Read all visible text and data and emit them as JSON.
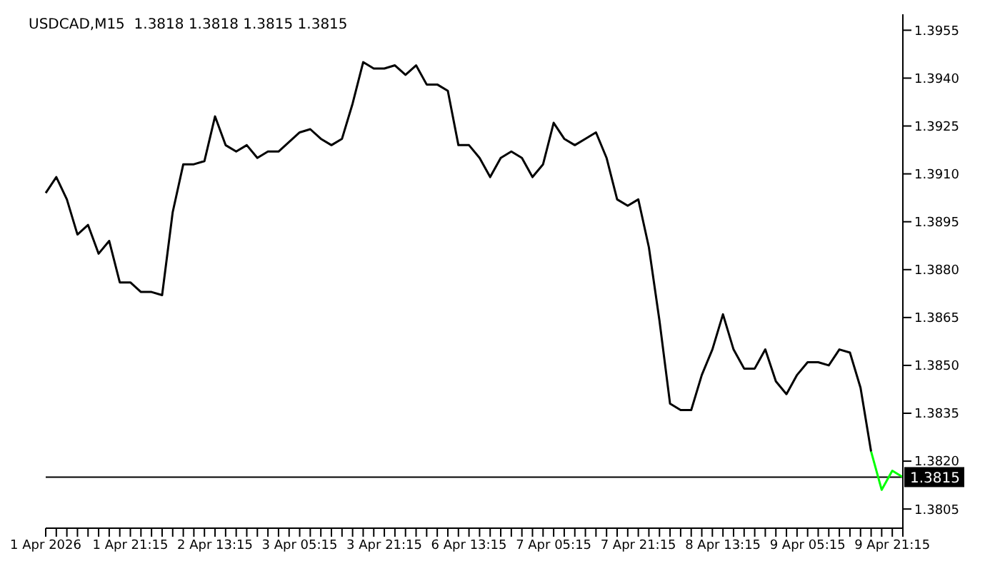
{
  "chart_data": {
    "type": "line",
    "title": "USDCAD,M15  1.3818 1.3818 1.3815 1.3815",
    "categories": [
      "1 Apr 2026",
      null,
      null,
      null,
      null,
      null,
      null,
      null,
      "1 Apr 21:15",
      null,
      null,
      null,
      null,
      null,
      null,
      null,
      "2 Apr 13:15",
      null,
      null,
      null,
      null,
      null,
      null,
      null,
      "3 Apr 05:15",
      null,
      null,
      null,
      null,
      null,
      null,
      null,
      "3 Apr 21:15",
      null,
      null,
      null,
      null,
      null,
      null,
      null,
      "6 Apr 13:15",
      null,
      null,
      null,
      null,
      null,
      null,
      null,
      "7 Apr 05:15",
      null,
      null,
      null,
      null,
      null,
      null,
      null,
      "7 Apr 21:15",
      null,
      null,
      null,
      null,
      null,
      null,
      null,
      "8 Apr 13:15",
      null,
      null,
      null,
      null,
      null,
      null,
      null,
      "9 Apr 05:15",
      null,
      null,
      null,
      null,
      null,
      null,
      null,
      "9 Apr 21:15",
      null
    ],
    "series": [
      {
        "color": "#000000",
        "values": [
          1.3904,
          1.3909,
          1.3902,
          1.3891,
          1.3894,
          1.3885,
          1.3889,
          1.3876,
          1.3876,
          1.3873,
          1.3873,
          1.3872,
          1.3898,
          1.3913,
          1.3913,
          1.3914,
          1.3928,
          1.3919,
          1.3917,
          1.3919,
          1.3915,
          1.3917,
          1.3917,
          1.392,
          1.3923,
          1.3924,
          1.3921,
          1.3919,
          1.3921,
          1.3932,
          1.3945,
          1.3943,
          1.3943,
          1.3944,
          1.3941,
          1.3944,
          1.3938,
          1.3938,
          1.3936,
          1.3919,
          1.3919,
          1.3915,
          1.3909,
          1.3915,
          1.3917,
          1.3915,
          1.3909,
          1.3913,
          1.3926,
          1.3921,
          1.3919,
          1.3921,
          1.3923,
          1.3915,
          1.3902,
          1.39,
          1.3902,
          1.3887,
          1.3864,
          1.3838,
          1.3836,
          1.3836,
          1.3847,
          1.3855,
          1.3866,
          1.3855,
          1.3849,
          1.3849,
          1.3855,
          1.3845,
          1.3841,
          1.3847,
          1.3851,
          1.3851,
          1.385,
          1.3855,
          1.3854,
          1.3843,
          1.3823,
          null,
          null,
          null
        ]
      },
      {
        "color": "#00ff00",
        "values": [
          null,
          null,
          null,
          null,
          null,
          null,
          null,
          null,
          null,
          null,
          null,
          null,
          null,
          null,
          null,
          null,
          null,
          null,
          null,
          null,
          null,
          null,
          null,
          null,
          null,
          null,
          null,
          null,
          null,
          null,
          null,
          null,
          null,
          null,
          null,
          null,
          null,
          null,
          null,
          null,
          null,
          null,
          null,
          null,
          null,
          null,
          null,
          null,
          null,
          null,
          null,
          null,
          null,
          null,
          null,
          null,
          null,
          null,
          null,
          null,
          null,
          null,
          null,
          null,
          null,
          null,
          null,
          null,
          null,
          null,
          null,
          null,
          null,
          null,
          null,
          null,
          null,
          null,
          1.3823,
          1.3811,
          1.3817,
          1.3815
        ]
      }
    ],
    "ylim": [
      1.3799,
      1.396
    ],
    "yticks": [
      1.3805,
      {
        "value": 1.382,
        "label": "1.3820"
      },
      1.3835,
      {
        "value": 1.385,
        "label": "1.3850"
      },
      1.3865,
      {
        "value": 1.388,
        "label": "1.3880"
      },
      1.3895,
      {
        "value": 1.391,
        "label": "1.3910"
      },
      1.3925,
      {
        "value": 1.394,
        "label": "1.3940"
      },
      1.3955
    ],
    "ref_lines": [
      {
        "axis": "y",
        "value": 1.3815,
        "label": "1.3815",
        "color": "#000000"
      }
    ],
    "grid": false,
    "legend": false,
    "marker": "none",
    "line_style": "solid"
  }
}
